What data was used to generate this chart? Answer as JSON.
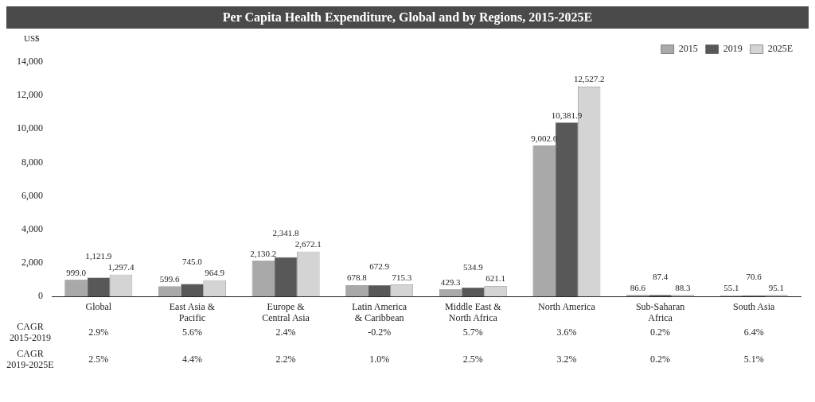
{
  "chart_data": {
    "type": "bar",
    "title": "Per Capita Health Expenditure, Global and by Regions, 2015-2025E",
    "ylabel": "US$",
    "categories": [
      "Global",
      "East Asia & Pacific",
      "Europe & Central Asia",
      "Latin America & Caribbean",
      "Middle East & North Africa",
      "North America",
      "Sub-Saharan Africa",
      "South Asia"
    ],
    "series": [
      {
        "name": "2015",
        "color": "#a9a9a9",
        "values": [
          999.0,
          599.6,
          2130.2,
          678.8,
          429.3,
          9002.6,
          86.6,
          55.1
        ],
        "value_labels": [
          "999.0",
          "599.6",
          "2,130.2",
          "678.8",
          "429.3",
          "9,002.6",
          "86.6",
          "55.1"
        ]
      },
      {
        "name": "2019",
        "color": "#585858",
        "values": [
          1121.9,
          745.0,
          2341.8,
          672.9,
          534.9,
          10381.9,
          87.4,
          70.6
        ],
        "value_labels": [
          "1,121.9",
          "745.0",
          "2,341.8",
          "672.9",
          "534.9",
          "10,381.9",
          "87.4",
          "70.6"
        ]
      },
      {
        "name": "2025E",
        "color": "#d4d4d4",
        "values": [
          1297.4,
          964.9,
          2672.1,
          715.3,
          621.1,
          12527.2,
          88.3,
          95.1
        ],
        "value_labels": [
          "1,297.4",
          "964.9",
          "2,672.1",
          "715.3",
          "621.1",
          "12,527.2",
          "88.3",
          "95.1"
        ]
      }
    ],
    "ylim": [
      0,
      14000
    ],
    "yticks": [
      0,
      {
        "value": 2000,
        "label": "2,000"
      },
      {
        "value": 4000,
        "label": "4,000"
      },
      {
        "value": 6000,
        "label": "6,000"
      },
      {
        "value": 8000,
        "label": "8,000"
      },
      {
        "value": 10000,
        "label": "10,000"
      },
      {
        "value": 12000,
        "label": "12,000"
      },
      {
        "value": 14000,
        "label": "14,000"
      }
    ],
    "grid": false,
    "legend": "top right",
    "annotations": [
      "CAGR 2015-2019",
      "2.9%",
      "5.6%",
      "2.4%",
      "-0.2%",
      "5.7%",
      "3.6%",
      "0.2%",
      "6.4%",
      "CAGR 2019-2025E",
      "2.5%",
      "4.4%",
      "2.2%",
      "1.0%",
      "2.5%",
      "3.2%",
      "0.2%",
      "5.1%"
    ]
  }
}
